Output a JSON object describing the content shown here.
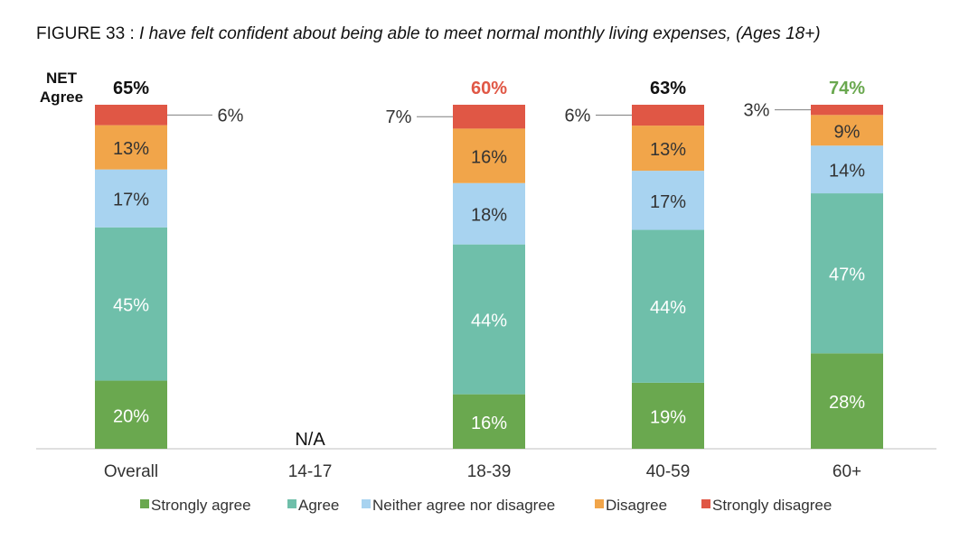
{
  "title": {
    "figure": "FIGURE 33 :",
    "text": "I have felt confident about being able to meet normal monthly living expenses, (Ages 18+)"
  },
  "net_label": [
    "NET",
    "Agree"
  ],
  "colors": {
    "strongly_agree": "#6aa84f",
    "agree": "#6fbfaa",
    "neither": "#a8d3f0",
    "disagree": "#f1a54a",
    "strongly_disagree": "#e05745",
    "net_default": "#111111",
    "net_low": "#e05745",
    "net_high": "#6aa84f"
  },
  "chart_data": {
    "type": "bar",
    "stacked": true,
    "categories": [
      "Overall",
      "14-17",
      "18-39",
      "40-59",
      "60+"
    ],
    "series": [
      {
        "name": "Strongly agree",
        "values": [
          20,
          null,
          16,
          19,
          28
        ]
      },
      {
        "name": "Agree",
        "values": [
          45,
          null,
          44,
          44,
          47
        ]
      },
      {
        "name": "Neither agree nor disagree",
        "values": [
          17,
          null,
          18,
          17,
          14
        ]
      },
      {
        "name": "Disagree",
        "values": [
          13,
          null,
          16,
          13,
          9
        ]
      },
      {
        "name": "Strongly disagree",
        "values": [
          6,
          null,
          7,
          6,
          3
        ]
      }
    ],
    "net_agree": [
      "65%",
      "",
      "60%",
      "63%",
      "74%"
    ],
    "na_label": "N/A",
    "ylim": [
      0,
      100
    ],
    "legend_position": "bottom"
  }
}
